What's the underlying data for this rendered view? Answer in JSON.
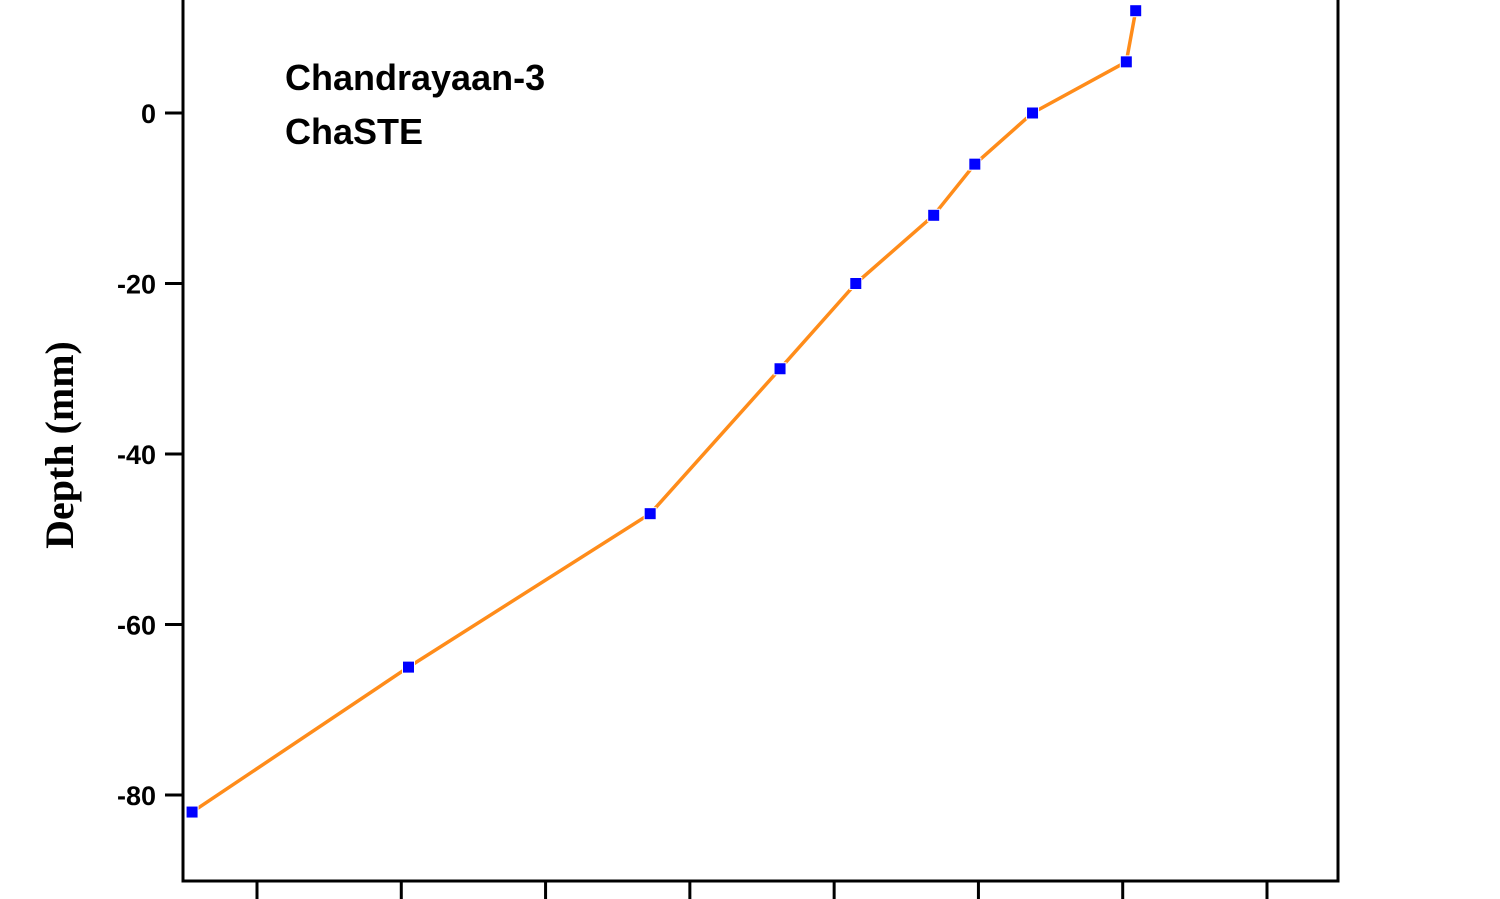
{
  "chart_data": {
    "type": "line",
    "annotations": [
      "Chandrayaan-3",
      "ChaSTE"
    ],
    "ylabel": "Depth (mm)",
    "xlabel": "",
    "yticks": [
      0,
      -20,
      -40,
      -60,
      -80
    ],
    "ylim": [
      -90,
      12
    ],
    "xlim": [
      -2,
      14
    ],
    "xticks_count": 8,
    "series": [
      {
        "points": [
          {
            "x": -0.9,
            "y": -82
          },
          {
            "x": 2.1,
            "y": -65
          },
          {
            "x": 5.45,
            "y": -47
          },
          {
            "x": 7.25,
            "y": -30
          },
          {
            "x": 8.3,
            "y": -20
          },
          {
            "x": 9.38,
            "y": -12
          },
          {
            "x": 9.95,
            "y": -6
          },
          {
            "x": 10.75,
            "y": 0
          },
          {
            "x": 12.05,
            "y": 6
          },
          {
            "x": 12.18,
            "y": 12
          }
        ]
      }
    ],
    "colors": {
      "line": "#ff8c1a",
      "marker": "#0000ff",
      "axis": "#000000"
    },
    "marker": "square"
  }
}
